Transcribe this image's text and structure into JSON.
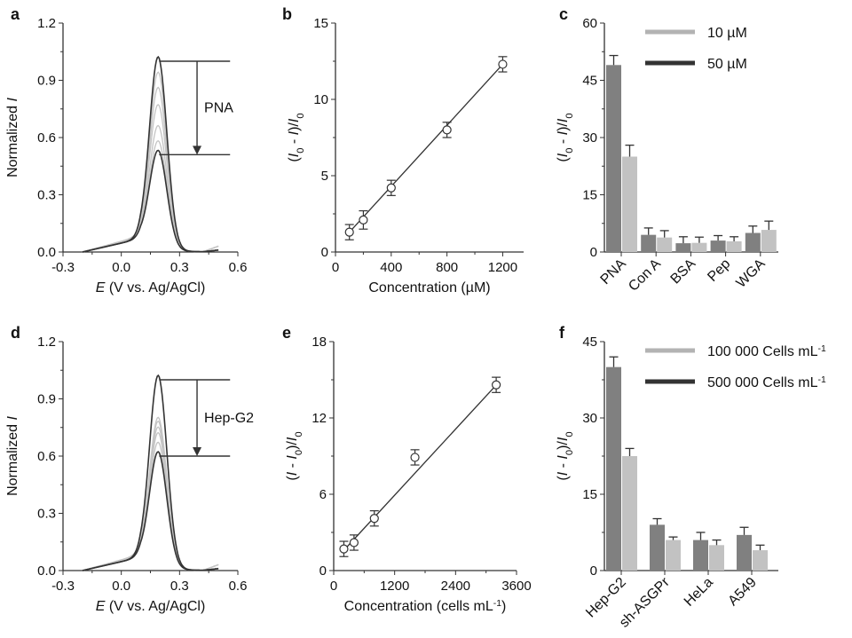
{
  "colors": {
    "dark_bar": "#808080",
    "light_bar": "#c2c2c2",
    "legend_dark": "#333333",
    "legend_light": "#b3b3b3",
    "axis": "#333333",
    "dark_curve": "#333333",
    "light_curve": "#c4c4c4",
    "cat_first": "#000000",
    "cat_other": "#6e6e6e"
  },
  "chart_data": [
    {
      "panel": "a",
      "type": "line",
      "xlabel": [
        {
          "t": "E",
          "s": "i"
        },
        {
          "t": " (V vs. Ag/AgCl)",
          "s": "n"
        }
      ],
      "ylabel": [
        {
          "t": "Normalized ",
          "s": "n"
        },
        {
          "t": "I",
          "s": "i"
        }
      ],
      "xlim": [
        -0.3,
        0.6
      ],
      "ylim": [
        0,
        1.2
      ],
      "xticks": [
        "-0.3",
        "0.0",
        "0.3",
        "0.6"
      ],
      "yticks": [
        "0.0",
        "0.3",
        "0.6",
        "0.9",
        "1.2"
      ],
      "peak_potential": 0.19,
      "curves_peak": [
        1.0,
        0.92,
        0.84,
        0.75,
        0.64,
        0.56,
        0.51
      ],
      "annotation": {
        "label": "PNA",
        "from": 1.0,
        "to": 0.51
      }
    },
    {
      "panel": "b",
      "type": "scatter",
      "xlabel": [
        {
          "t": "Concentration (µM)",
          "s": "n"
        }
      ],
      "ylabel": [
        {
          "t": "(",
          "s": "n"
        },
        {
          "t": "I",
          "s": "i"
        },
        {
          "t": "0",
          "s": "sub"
        },
        {
          "t": " - ",
          "s": "n"
        },
        {
          "t": "I",
          "s": "i"
        },
        {
          "t": ")/",
          "s": "n"
        },
        {
          "t": "I",
          "s": "i"
        },
        {
          "t": "0",
          "s": "sub"
        }
      ],
      "xlim": [
        0,
        1350
      ],
      "ylim": [
        0,
        15
      ],
      "xticks": [
        "0",
        "400",
        "800",
        "1200"
      ],
      "yticks": [
        "0",
        "5",
        "10",
        "15"
      ],
      "x": [
        100,
        200,
        400,
        800,
        1200
      ],
      "y": [
        1.3,
        2.1,
        4.2,
        8.0,
        12.3
      ],
      "err": [
        0.5,
        0.6,
        0.5,
        0.5,
        0.5
      ],
      "fit": {
        "slope": 0.01,
        "intercept": 0.3,
        "x_range": [
          100,
          1200
        ]
      }
    },
    {
      "panel": "c",
      "type": "bar",
      "ylabel": [
        {
          "t": "(",
          "s": "n"
        },
        {
          "t": "I",
          "s": "i"
        },
        {
          "t": "0",
          "s": "sub"
        },
        {
          "t": " - ",
          "s": "n"
        },
        {
          "t": "I",
          "s": "i"
        },
        {
          "t": ")/",
          "s": "n"
        },
        {
          "t": "I",
          "s": "i"
        },
        {
          "t": "0",
          "s": "sub"
        }
      ],
      "ylim": [
        0,
        60
      ],
      "yticks": [
        "0",
        "15",
        "30",
        "45",
        "60"
      ],
      "categories": [
        "PNA",
        "Con A",
        "BSA",
        "Pep",
        "WGA"
      ],
      "series": [
        {
          "name": "50 µM",
          "values": [
            49,
            4.5,
            2.3,
            3.0,
            5.0
          ],
          "err": [
            2.5,
            1.8,
            1.7,
            1.3,
            1.8
          ]
        },
        {
          "name": "10 µM",
          "values": [
            25,
            3.8,
            2.4,
            2.8,
            5.8
          ],
          "err": [
            3.0,
            1.8,
            1.5,
            1.2,
            2.3
          ]
        }
      ],
      "legend": [
        "10 µM",
        "50 µM"
      ],
      "legend_placement": "top-right"
    },
    {
      "panel": "d",
      "type": "line",
      "xlabel": [
        {
          "t": "E",
          "s": "i"
        },
        {
          "t": " (V vs. Ag/AgCl)",
          "s": "n"
        }
      ],
      "ylabel": [
        {
          "t": "Normalized ",
          "s": "n"
        },
        {
          "t": "I",
          "s": "i"
        }
      ],
      "xlim": [
        -0.3,
        0.6
      ],
      "ylim": [
        0,
        1.2
      ],
      "xticks": [
        "-0.3",
        "0.0",
        "0.3",
        "0.6"
      ],
      "yticks": [
        "0.0",
        "0.3",
        "0.6",
        "0.9",
        "1.2"
      ],
      "peak_potential": 0.19,
      "curves_peak": [
        1.0,
        0.78,
        0.76,
        0.73,
        0.7,
        0.65,
        0.6
      ],
      "annotation": {
        "label": "Hep-G2",
        "from": 1.0,
        "to": 0.6
      }
    },
    {
      "panel": "e",
      "type": "scatter",
      "xlabel": [
        {
          "t": "Concentration (cells mL",
          "s": "n"
        },
        {
          "t": "-1",
          "s": "sup"
        },
        {
          "t": ")",
          "s": "n"
        }
      ],
      "ylabel": [
        {
          "t": "(",
          "s": "n"
        },
        {
          "t": "I",
          "s": "i"
        },
        {
          "t": " - ",
          "s": "n"
        },
        {
          "t": "I",
          "s": "i"
        },
        {
          "t": "0",
          "s": "sub"
        },
        {
          "t": ")/",
          "s": "n"
        },
        {
          "t": "I",
          "s": "i"
        },
        {
          "t": "0",
          "s": "sub"
        }
      ],
      "xlim": [
        0,
        3600
      ],
      "ylim": [
        0,
        18
      ],
      "xticks": [
        "0",
        "1200",
        "2400",
        "3600"
      ],
      "yticks": [
        "0",
        "6",
        "12",
        "18"
      ],
      "x": [
        200,
        400,
        800,
        1600,
        3200
      ],
      "y": [
        1.7,
        2.2,
        4.1,
        8.9,
        14.6
      ],
      "err": [
        0.6,
        0.6,
        0.6,
        0.6,
        0.6
      ],
      "fit": {
        "slope": 0.00433,
        "intercept": 0.73,
        "x_range": [
          200,
          3200
        ]
      }
    },
    {
      "panel": "f",
      "type": "bar",
      "ylabel": [
        {
          "t": "(",
          "s": "n"
        },
        {
          "t": "I",
          "s": "i"
        },
        {
          "t": " - ",
          "s": "n"
        },
        {
          "t": "I",
          "s": "i"
        },
        {
          "t": "0",
          "s": "sub"
        },
        {
          "t": ")/",
          "s": "n"
        },
        {
          "t": "I",
          "s": "i"
        },
        {
          "t": "0",
          "s": "sub"
        }
      ],
      "ylim": [
        0,
        45
      ],
      "yticks": [
        "0",
        "15",
        "30",
        "45"
      ],
      "categories": [
        "Hep-G2",
        "sh-ASGPr",
        "HeLa",
        "A549"
      ],
      "series": [
        {
          "name": "500 000 Cells mL-1",
          "values": [
            40,
            9,
            6,
            7
          ],
          "err": [
            2,
            1.2,
            1.5,
            1.5
          ]
        },
        {
          "name": "100 000 Cells mL-1",
          "values": [
            22.5,
            6,
            5,
            4
          ],
          "err": [
            1.5,
            0.6,
            1.0,
            1.0
          ]
        }
      ],
      "legend": [
        "100 000 Cells mL-1",
        "500 000 Cells mL-1"
      ],
      "legend_placement": "top-right"
    }
  ]
}
